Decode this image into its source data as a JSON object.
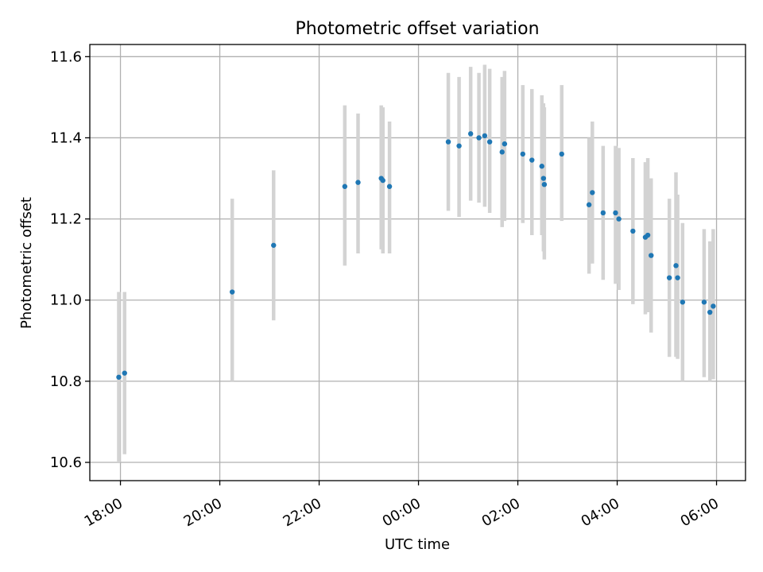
{
  "chart_data": {
    "type": "scatter",
    "title": "Photometric offset variation",
    "xlabel": "UTC time",
    "ylabel": "Photometric offset",
    "grid": true,
    "legend": "none",
    "colors": {
      "point": "#1f77b4",
      "errorbar": "#d3d3d3",
      "grid": "#b0b0b0"
    },
    "xlim": [
      "17:23",
      "06:35"
    ],
    "ylim": [
      10.555,
      11.63
    ],
    "x_ticks": [
      "18:00",
      "20:00",
      "22:00",
      "00:00",
      "02:00",
      "04:00",
      "06:00"
    ],
    "y_ticks": [
      "10.6",
      "10.8",
      "11.0",
      "11.2",
      "11.4",
      "11.6"
    ],
    "series": [
      {
        "points": [
          {
            "x": "17:58",
            "y": 10.81,
            "ylo": 10.6,
            "yhi": 11.02
          },
          {
            "x": "18:05",
            "y": 10.82,
            "ylo": 10.62,
            "yhi": 11.02
          },
          {
            "x": "20:15",
            "y": 11.02,
            "ylo": 10.8,
            "yhi": 11.25
          },
          {
            "x": "21:05",
            "y": 11.135,
            "ylo": 10.95,
            "yhi": 11.32
          },
          {
            "x": "22:31",
            "y": 11.28,
            "ylo": 11.085,
            "yhi": 11.48
          },
          {
            "x": "22:47",
            "y": 11.29,
            "ylo": 11.115,
            "yhi": 11.46
          },
          {
            "x": "23:15",
            "y": 11.3,
            "ylo": 11.125,
            "yhi": 11.48
          },
          {
            "x": "23:17",
            "y": 11.295,
            "ylo": 11.115,
            "yhi": 11.475
          },
          {
            "x": "23:25",
            "y": 11.28,
            "ylo": 11.115,
            "yhi": 11.44
          },
          {
            "x": "00:36",
            "y": 11.39,
            "ylo": 11.22,
            "yhi": 11.56
          },
          {
            "x": "00:49",
            "y": 11.38,
            "ylo": 11.205,
            "yhi": 11.55
          },
          {
            "x": "01:03",
            "y": 11.41,
            "ylo": 11.245,
            "yhi": 11.575
          },
          {
            "x": "01:13",
            "y": 11.4,
            "ylo": 11.24,
            "yhi": 11.56
          },
          {
            "x": "01:20",
            "y": 11.405,
            "ylo": 11.23,
            "yhi": 11.58
          },
          {
            "x": "01:26",
            "y": 11.39,
            "ylo": 11.215,
            "yhi": 11.57
          },
          {
            "x": "01:41",
            "y": 11.365,
            "ylo": 11.18,
            "yhi": 11.55
          },
          {
            "x": "01:44",
            "y": 11.385,
            "ylo": 11.195,
            "yhi": 11.565
          },
          {
            "x": "02:06",
            "y": 11.36,
            "ylo": 11.19,
            "yhi": 11.53
          },
          {
            "x": "02:17",
            "y": 11.345,
            "ylo": 11.16,
            "yhi": 11.52
          },
          {
            "x": "02:29",
            "y": 11.33,
            "ylo": 11.16,
            "yhi": 11.505
          },
          {
            "x": "02:31",
            "y": 11.3,
            "ylo": 11.12,
            "yhi": 11.485
          },
          {
            "x": "02:32",
            "y": 11.285,
            "ylo": 11.1,
            "yhi": 11.475
          },
          {
            "x": "02:53",
            "y": 11.36,
            "ylo": 11.195,
            "yhi": 11.53
          },
          {
            "x": "03:26",
            "y": 11.235,
            "ylo": 11.065,
            "yhi": 11.4
          },
          {
            "x": "03:30",
            "y": 11.265,
            "ylo": 11.09,
            "yhi": 11.44
          },
          {
            "x": "03:43",
            "y": 11.215,
            "ylo": 11.05,
            "yhi": 11.38
          },
          {
            "x": "03:58",
            "y": 11.215,
            "ylo": 11.04,
            "yhi": 11.38
          },
          {
            "x": "04:02",
            "y": 11.2,
            "ylo": 11.025,
            "yhi": 11.375
          },
          {
            "x": "04:19",
            "y": 11.17,
            "ylo": 10.99,
            "yhi": 11.35
          },
          {
            "x": "04:34",
            "y": 11.155,
            "ylo": 10.965,
            "yhi": 11.34
          },
          {
            "x": "04:37",
            "y": 11.16,
            "ylo": 10.97,
            "yhi": 11.35
          },
          {
            "x": "04:41",
            "y": 11.11,
            "ylo": 10.92,
            "yhi": 11.3
          },
          {
            "x": "05:03",
            "y": 11.055,
            "ylo": 10.86,
            "yhi": 11.25
          },
          {
            "x": "05:11",
            "y": 11.085,
            "ylo": 10.86,
            "yhi": 11.315
          },
          {
            "x": "05:13",
            "y": 11.055,
            "ylo": 10.855,
            "yhi": 11.26
          },
          {
            "x": "05:19",
            "y": 10.995,
            "ylo": 10.8,
            "yhi": 11.19
          },
          {
            "x": "05:45",
            "y": 10.995,
            "ylo": 10.81,
            "yhi": 11.175
          },
          {
            "x": "05:52",
            "y": 10.97,
            "ylo": 10.8,
            "yhi": 11.145
          },
          {
            "x": "05:56",
            "y": 10.985,
            "ylo": 10.805,
            "yhi": 11.175
          }
        ]
      }
    ]
  }
}
